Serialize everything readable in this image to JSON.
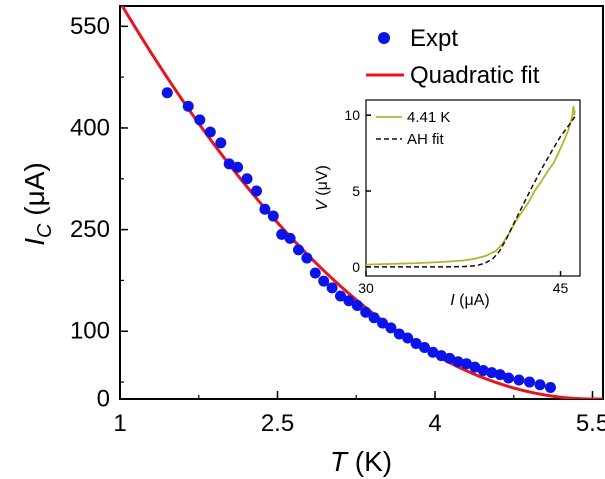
{
  "chart_data": [
    {
      "type": "scatter",
      "xlabel": {
        "italic": "T",
        "unit": " (K)"
      },
      "ylabel": {
        "italic": "I",
        "sub": "C",
        "unit": " (μA)"
      },
      "xlim": [
        1.0,
        5.6
      ],
      "ylim": [
        0,
        580
      ],
      "xticks": [
        {
          "value": 1.0,
          "label": "1"
        },
        {
          "value": 2.5,
          "label": "2.5"
        },
        {
          "value": 4.0,
          "label": "4"
        },
        {
          "value": 5.5,
          "label": "5.5"
        }
      ],
      "yticks": [
        {
          "value": 0,
          "label": "0"
        },
        {
          "value": 100,
          "label": "100"
        },
        {
          "value": 250,
          "label": "250"
        },
        {
          "value": 400,
          "label": "400"
        },
        {
          "value": 550,
          "label": "550"
        }
      ],
      "legend_position": "top-right",
      "series": [
        {
          "name": "Expt",
          "kind": "points",
          "color": "#0a14e8",
          "x": [
            1.45,
            1.65,
            1.76,
            1.86,
            1.96,
            2.04,
            2.12,
            2.21,
            2.3,
            2.38,
            2.46,
            2.54,
            2.62,
            2.7,
            2.78,
            2.86,
            2.94,
            3.02,
            3.1,
            3.18,
            3.26,
            3.34,
            3.42,
            3.5,
            3.58,
            3.66,
            3.74,
            3.82,
            3.9,
            3.98,
            4.06,
            4.14,
            4.22,
            4.3,
            4.38,
            4.46,
            4.54,
            4.62,
            4.7,
            4.8,
            4.9,
            5.0,
            5.1
          ],
          "y": [
            452,
            432,
            412,
            394,
            378,
            347,
            342,
            325,
            307,
            280,
            270,
            243,
            237,
            220,
            208,
            186,
            174,
            164,
            152,
            145,
            138,
            128,
            120,
            112,
            105,
            96,
            90,
            82,
            76,
            69,
            64,
            60,
            55,
            52,
            47,
            42,
            39,
            36,
            31,
            28,
            25,
            21,
            17
          ]
        },
        {
          "name": "Quadratic fit",
          "kind": "line",
          "color": "#e8141e",
          "function": "a*(Tc - T)^2",
          "a": 28.92,
          "Tc": 5.5,
          "x_range": [
            1.0,
            5.6
          ]
        }
      ]
    },
    {
      "type": "line",
      "xlabel": {
        "italic": "I",
        "unit": " (μA)"
      },
      "ylabel": {
        "italic": "V",
        "unit": " (μV)"
      },
      "xlim": [
        30,
        46.5
      ],
      "ylim": [
        -0.6,
        11
      ],
      "xticks": [
        {
          "value": 30,
          "label": "30"
        },
        {
          "value": 45,
          "label": "45"
        }
      ],
      "yticks": [
        {
          "value": 0,
          "label": "0"
        },
        {
          "value": 5,
          "label": "5"
        },
        {
          "value": 10,
          "label": "10"
        }
      ],
      "legend_position": "top-left",
      "series": [
        {
          "name": "4.41 K",
          "color": "#b4b428",
          "dash": "solid",
          "x": [
            30,
            32,
            34,
            36,
            37.5,
            38.5,
            39.3,
            40,
            40.5,
            41,
            41.5,
            42,
            42.5,
            43,
            43.5,
            44,
            44.5,
            45,
            45.3,
            45.6,
            45.8,
            45.9,
            46.0,
            46.05,
            46.1
          ],
          "y": [
            0.15,
            0.2,
            0.25,
            0.33,
            0.42,
            0.55,
            0.75,
            1.05,
            1.5,
            2.15,
            2.95,
            3.6,
            4.2,
            5.0,
            5.6,
            6.3,
            6.9,
            7.8,
            8.4,
            9.0,
            9.6,
            9.9,
            10.6,
            10.0,
            10.3
          ]
        },
        {
          "name": "AH fit",
          "color": "#111111",
          "dash": "dashed",
          "x": [
            30,
            33,
            36,
            37.5,
            38.5,
            39.2,
            39.8,
            40.3,
            40.8,
            41.3,
            42,
            42.7,
            43.5,
            44.3,
            45,
            45.7,
            46.1
          ],
          "y": [
            0,
            0,
            0,
            0.02,
            0.08,
            0.25,
            0.55,
            1.05,
            1.8,
            2.7,
            3.9,
            5.1,
            6.4,
            7.6,
            8.6,
            9.4,
            9.9
          ]
        }
      ]
    }
  ]
}
